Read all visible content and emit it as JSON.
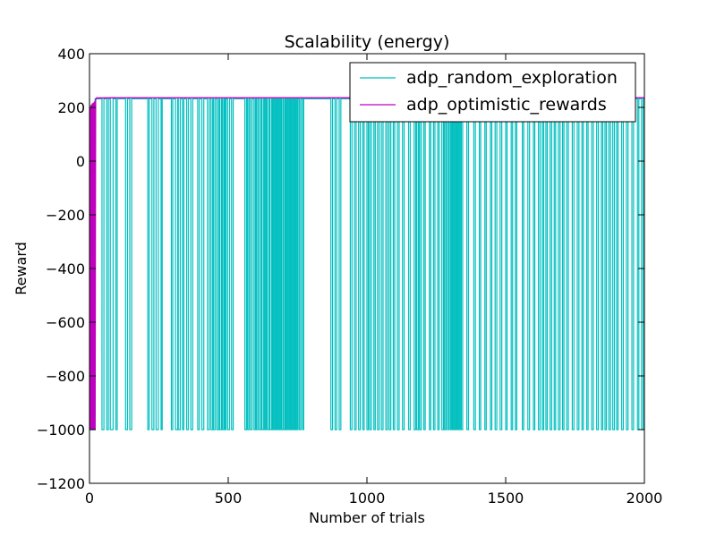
{
  "chart_data": {
    "type": "line",
    "title": "Scalability (energy)",
    "xlabel": "Number of trials",
    "ylabel": "Reward",
    "xlim": [
      0,
      2000
    ],
    "ylim": [
      -1200,
      400
    ],
    "xticks": [
      0,
      500,
      1000,
      1500,
      2000
    ],
    "xtick_labels": [
      "0",
      "500",
      "1000",
      "1500",
      "2000"
    ],
    "yticks": [
      -1200,
      -1000,
      -800,
      -600,
      -400,
      -200,
      0,
      200,
      400
    ],
    "ytick_labels": [
      "−1200",
      "−1000",
      "−800",
      "−600",
      "−400",
      "−200",
      "0",
      "200",
      "400"
    ],
    "grid": false,
    "legend_position": "top-right",
    "series": [
      {
        "name": "adp_random_exploration",
        "color": "#00bfbf",
        "high_value": 232,
        "low_value": -1000,
        "drop_intervals": [
          [
            0,
            20
          ],
          [
            45,
            52
          ],
          [
            62,
            68
          ],
          [
            75,
            85
          ],
          [
            95,
            100
          ],
          [
            130,
            137
          ],
          [
            145,
            152
          ],
          [
            210,
            215
          ],
          [
            225,
            232
          ],
          [
            240,
            248
          ],
          [
            258,
            262
          ],
          [
            295,
            300
          ],
          [
            310,
            318
          ],
          [
            320,
            327
          ],
          [
            335,
            340
          ],
          [
            350,
            356
          ],
          [
            365,
            372
          ],
          [
            390,
            396
          ],
          [
            405,
            412
          ],
          [
            425,
            432
          ],
          [
            438,
            444
          ],
          [
            448,
            454
          ],
          [
            460,
            466
          ],
          [
            470,
            476
          ],
          [
            480,
            485
          ],
          [
            488,
            492
          ],
          [
            498,
            505
          ],
          [
            512,
            518
          ],
          [
            560,
            566
          ],
          [
            570,
            575
          ],
          [
            580,
            586
          ],
          [
            593,
            598
          ],
          [
            602,
            607
          ],
          [
            612,
            618
          ],
          [
            622,
            628
          ],
          [
            632,
            636
          ],
          [
            640,
            646
          ],
          [
            650,
            656
          ],
          [
            660,
            664
          ],
          [
            668,
            672
          ],
          [
            676,
            680
          ],
          [
            684,
            688
          ],
          [
            692,
            697
          ],
          [
            700,
            705
          ],
          [
            708,
            712
          ],
          [
            716,
            720
          ],
          [
            724,
            728
          ],
          [
            732,
            736
          ],
          [
            740,
            744
          ],
          [
            748,
            752
          ],
          [
            757,
            762
          ],
          [
            768,
            772
          ],
          [
            870,
            876
          ],
          [
            885,
            891
          ],
          [
            900,
            906
          ],
          [
            940,
            946
          ],
          [
            955,
            961
          ],
          [
            970,
            976
          ],
          [
            985,
            990
          ],
          [
            1000,
            1005
          ],
          [
            1010,
            1016
          ],
          [
            1025,
            1030
          ],
          [
            1038,
            1044
          ],
          [
            1052,
            1058
          ],
          [
            1068,
            1074
          ],
          [
            1080,
            1086
          ],
          [
            1095,
            1100
          ],
          [
            1110,
            1116
          ],
          [
            1128,
            1134
          ],
          [
            1150,
            1156
          ],
          [
            1170,
            1176
          ],
          [
            1180,
            1186
          ],
          [
            1190,
            1196
          ],
          [
            1205,
            1210
          ],
          [
            1225,
            1230
          ],
          [
            1240,
            1245
          ],
          [
            1255,
            1260
          ],
          [
            1270,
            1276
          ],
          [
            1280,
            1285
          ],
          [
            1290,
            1295
          ],
          [
            1300,
            1304
          ],
          [
            1308,
            1312
          ],
          [
            1316,
            1320
          ],
          [
            1324,
            1328
          ],
          [
            1332,
            1336
          ],
          [
            1340,
            1345
          ],
          [
            1360,
            1366
          ],
          [
            1385,
            1391
          ],
          [
            1405,
            1410
          ],
          [
            1425,
            1430
          ],
          [
            1445,
            1450
          ],
          [
            1462,
            1468
          ],
          [
            1480,
            1486
          ],
          [
            1500,
            1505
          ],
          [
            1520,
            1525
          ],
          [
            1535,
            1540
          ],
          [
            1560,
            1565
          ],
          [
            1580,
            1586
          ],
          [
            1600,
            1605
          ],
          [
            1618,
            1624
          ],
          [
            1632,
            1637
          ],
          [
            1645,
            1650
          ],
          [
            1660,
            1666
          ],
          [
            1675,
            1680
          ],
          [
            1690,
            1696
          ],
          [
            1705,
            1710
          ],
          [
            1720,
            1726
          ],
          [
            1740,
            1746
          ],
          [
            1758,
            1764
          ],
          [
            1775,
            1780
          ],
          [
            1792,
            1797
          ],
          [
            1810,
            1816
          ],
          [
            1828,
            1834
          ],
          [
            1845,
            1850
          ],
          [
            1858,
            1863
          ],
          [
            1872,
            1878
          ],
          [
            1886,
            1892
          ],
          [
            1900,
            1905
          ],
          [
            1918,
            1924
          ],
          [
            1935,
            1941
          ],
          [
            1955,
            1961
          ],
          [
            1975,
            1980
          ],
          [
            1990,
            1996
          ]
        ]
      },
      {
        "name": "adp_optimistic_rewards",
        "color": "#bf00bf",
        "points": [
          [
            0,
            -1000
          ],
          [
            2,
            200
          ],
          [
            4,
            -1000
          ],
          [
            6,
            210
          ],
          [
            8,
            -1000
          ],
          [
            10,
            215
          ],
          [
            12,
            -1000
          ],
          [
            14,
            218
          ],
          [
            16,
            -1000
          ],
          [
            18,
            222
          ],
          [
            20,
            -1000
          ],
          [
            22,
            228
          ],
          [
            25,
            235
          ],
          [
            100,
            236
          ],
          [
            2000,
            236
          ]
        ]
      }
    ]
  }
}
